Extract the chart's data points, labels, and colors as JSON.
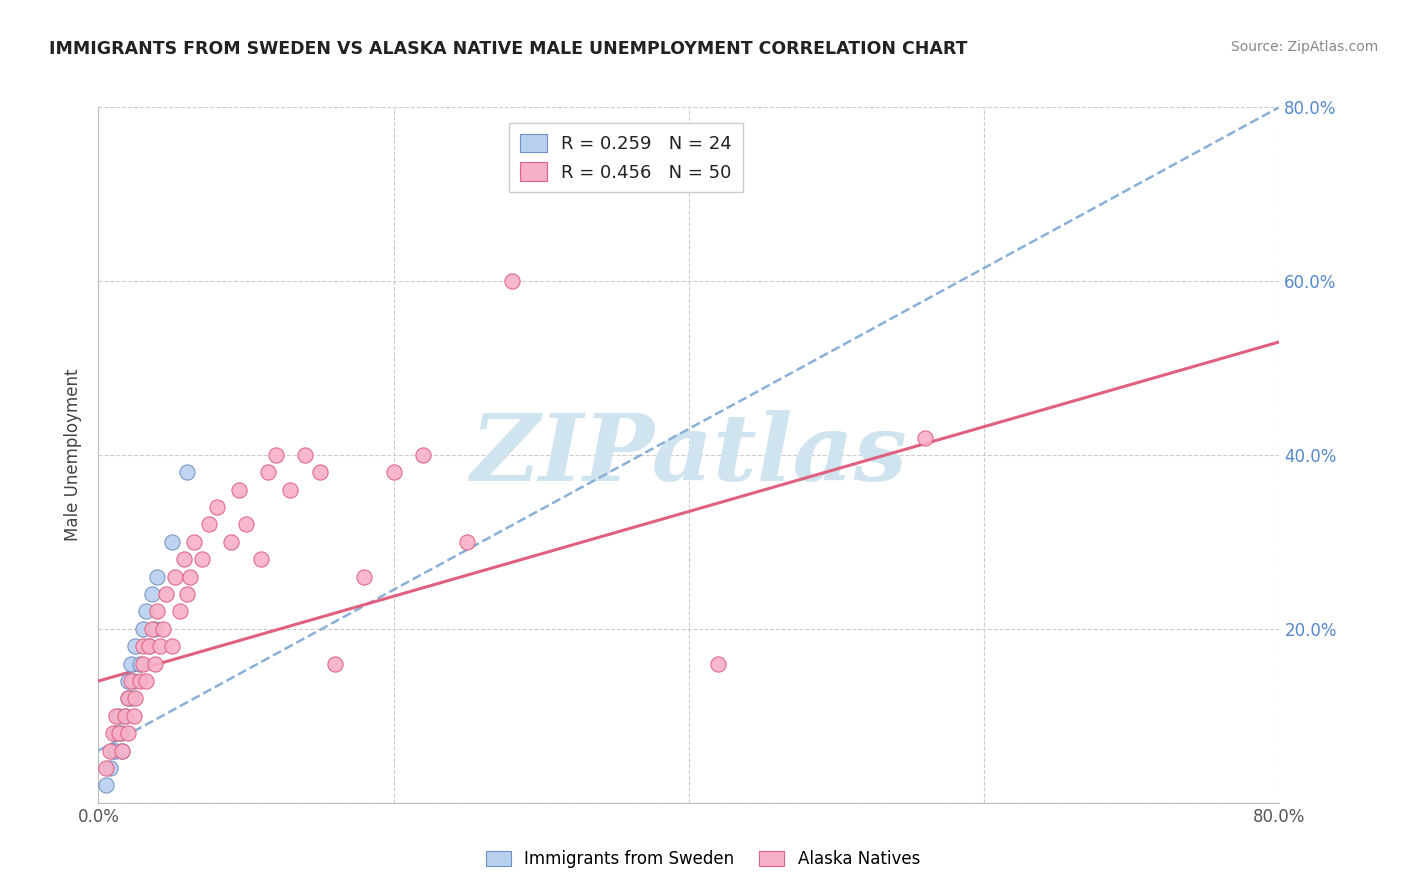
{
  "title": "IMMIGRANTS FROM SWEDEN VS ALASKA NATIVE MALE UNEMPLOYMENT CORRELATION CHART",
  "source": "Source: ZipAtlas.com",
  "ylabel": "Male Unemployment",
  "xlim": [
    0.0,
    0.8
  ],
  "ylim": [
    0.0,
    0.8
  ],
  "xticks": [
    0.0,
    0.2,
    0.4,
    0.6,
    0.8
  ],
  "yticks": [
    0.0,
    0.2,
    0.4,
    0.6,
    0.8
  ],
  "xticklabels": [
    "0.0%",
    "",
    "",
    "",
    "80.0%"
  ],
  "yticklabels_right": [
    "",
    "20.0%",
    "40.0%",
    "60.0%",
    "80.0%"
  ],
  "legend_labels": [
    "Immigrants from Sweden",
    "Alaska Natives"
  ],
  "blue_R": "R = 0.259",
  "blue_N": "N = 24",
  "pink_R": "R = 0.456",
  "pink_N": "N = 50",
  "blue_fill": "#b8d0f0",
  "blue_edge": "#7090c0",
  "pink_fill": "#f8b0c8",
  "pink_edge": "#e06080",
  "blue_regline_color": "#8ab0d8",
  "pink_regline_color": "#e06080",
  "watermark_text": "ZIPatlas",
  "watermark_color": "#d0e4f0",
  "blue_scatter_x": [
    0.005,
    0.008,
    0.01,
    0.012,
    0.012,
    0.014,
    0.015,
    0.016,
    0.018,
    0.02,
    0.02,
    0.022,
    0.022,
    0.024,
    0.025,
    0.028,
    0.03,
    0.032,
    0.034,
    0.036,
    0.038,
    0.04,
    0.05,
    0.06
  ],
  "blue_scatter_y": [
    0.02,
    0.04,
    0.06,
    0.06,
    0.08,
    0.1,
    0.08,
    0.06,
    0.1,
    0.12,
    0.14,
    0.12,
    0.16,
    0.14,
    0.18,
    0.16,
    0.2,
    0.22,
    0.18,
    0.24,
    0.2,
    0.26,
    0.3,
    0.38
  ],
  "pink_scatter_x": [
    0.005,
    0.008,
    0.01,
    0.012,
    0.014,
    0.016,
    0.018,
    0.02,
    0.02,
    0.022,
    0.024,
    0.025,
    0.028,
    0.03,
    0.03,
    0.032,
    0.034,
    0.036,
    0.038,
    0.04,
    0.042,
    0.044,
    0.046,
    0.05,
    0.052,
    0.055,
    0.058,
    0.06,
    0.062,
    0.065,
    0.07,
    0.075,
    0.08,
    0.09,
    0.095,
    0.1,
    0.11,
    0.115,
    0.12,
    0.13,
    0.14,
    0.15,
    0.16,
    0.18,
    0.2,
    0.22,
    0.25,
    0.28,
    0.42,
    0.56
  ],
  "pink_scatter_y": [
    0.04,
    0.06,
    0.08,
    0.1,
    0.08,
    0.06,
    0.1,
    0.12,
    0.08,
    0.14,
    0.1,
    0.12,
    0.14,
    0.16,
    0.18,
    0.14,
    0.18,
    0.2,
    0.16,
    0.22,
    0.18,
    0.2,
    0.24,
    0.18,
    0.26,
    0.22,
    0.28,
    0.24,
    0.26,
    0.3,
    0.28,
    0.32,
    0.34,
    0.3,
    0.36,
    0.32,
    0.28,
    0.38,
    0.4,
    0.36,
    0.4,
    0.38,
    0.16,
    0.26,
    0.38,
    0.4,
    0.3,
    0.6,
    0.16,
    0.42
  ],
  "blue_line_x0": 0.0,
  "blue_line_y0": 0.06,
  "blue_line_x1": 0.8,
  "blue_line_y1": 0.8,
  "pink_line_x0": 0.0,
  "pink_line_y0": 0.14,
  "pink_line_x1": 0.8,
  "pink_line_y1": 0.53
}
